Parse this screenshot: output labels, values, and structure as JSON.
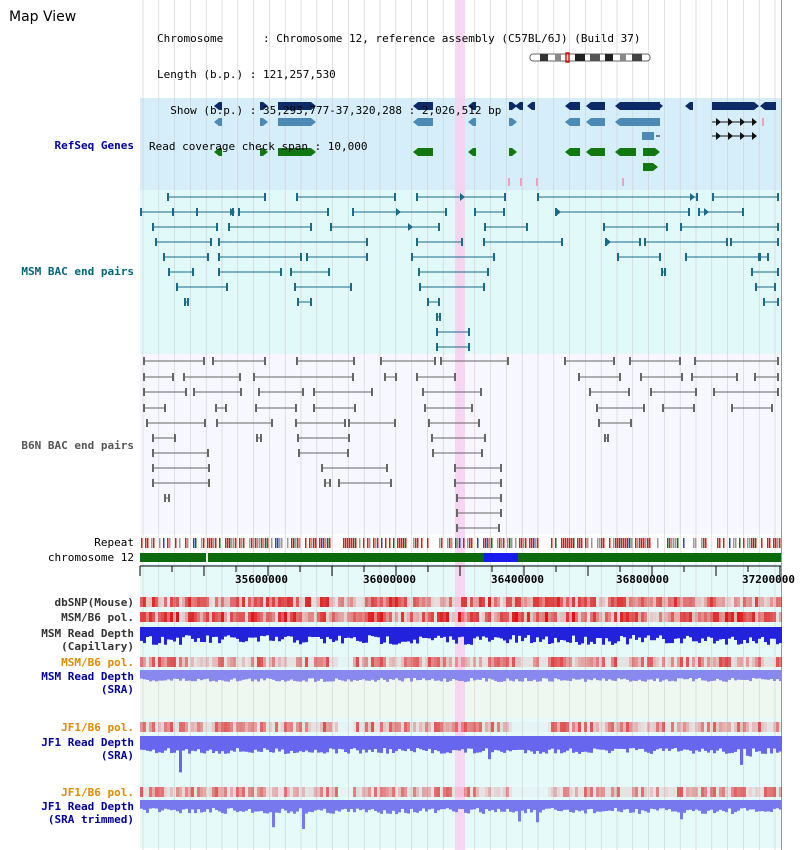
{
  "title": "Map View",
  "info": {
    "chromosome": "Chromosome      : Chromosome 12, reference assembly (C57BL/6J) (Build 37)",
    "length": "Length (b.p.) : 121,257,530",
    "show": "  Show (b.p.) : 35,293,777-37,320,288 : 2,026,512 bp",
    "span": "Read coverage check span : 10,000"
  },
  "tracks": {
    "refseq": {
      "label": "RefSeq Genes",
      "color": "#000099"
    },
    "msm_bac": {
      "label": "MSM BAC end pairs",
      "color": "#006677"
    },
    "b6n_bac": {
      "label": "B6N BAC end pairs",
      "color": "#555555"
    },
    "repeat": {
      "label": "Repeat"
    },
    "chromosome": {
      "label": "chromosome 12"
    },
    "dbsnp": {
      "label": "dbSNP(Mouse)"
    },
    "msm_b6_pol1": {
      "label": "MSM/B6 pol."
    },
    "msm_depth_cap": {
      "line1": "MSM Read Depth",
      "line2": "(Capillary)"
    },
    "msm_b6_pol2": {
      "label": "MSM/B6 pol.",
      "color": "#e08a00"
    },
    "msm_depth_sra": {
      "line1": "MSM Read Depth",
      "line2": "(SRA)",
      "color": "#000099"
    },
    "jf1_pol1": {
      "label": "JF1/B6 pol.",
      "color": "#e08a00"
    },
    "jf1_depth_sra": {
      "line1": "JF1 Read Depth",
      "line2": "(SRA)",
      "color": "#000099"
    },
    "jf1_pol2": {
      "label": "JF1/B6 pol.",
      "color": "#e08a00"
    },
    "jf1_depth_trim": {
      "line1": "JF1 Read Depth",
      "line2": "(SRA trimmed)",
      "color": "#000099"
    }
  },
  "axis_ticks": [
    "35600000",
    "36000000",
    "36400000",
    "36800000",
    "37200000"
  ]
}
